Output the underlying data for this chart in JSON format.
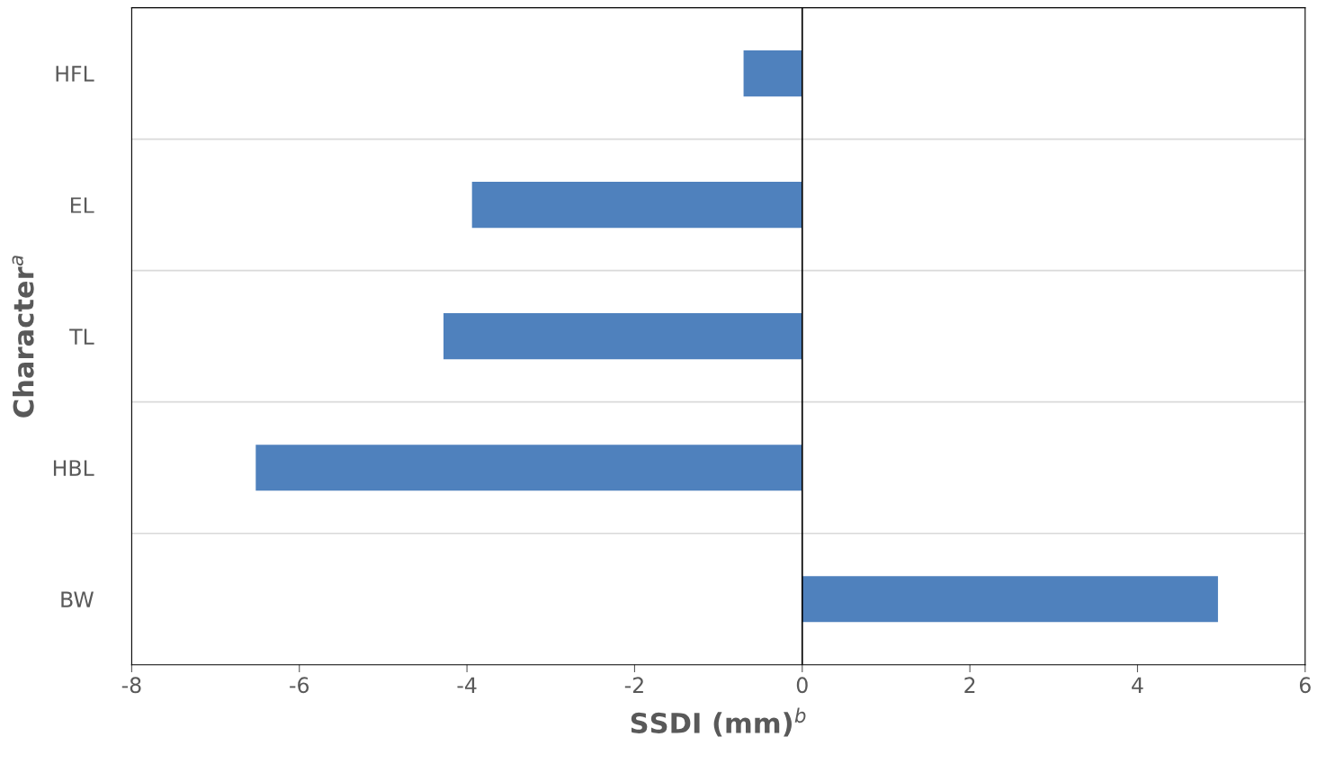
{
  "chart_data": {
    "type": "bar",
    "orientation": "horizontal",
    "xlabel": "SSDI (mm)$^{b}$",
    "ylabel": "Character$^{a}$",
    "categories": [
      "HFL",
      "EL",
      "TL",
      "HBL",
      "BW"
    ],
    "values": [
      -0.7,
      -3.94,
      -4.28,
      -6.52,
      4.96
    ],
    "color": "#4f81bd",
    "xlim": [
      -8,
      6
    ],
    "xticks": [
      -8,
      -6,
      -4,
      -2,
      0,
      2,
      4,
      6
    ],
    "grid": "y",
    "legend": false
  }
}
